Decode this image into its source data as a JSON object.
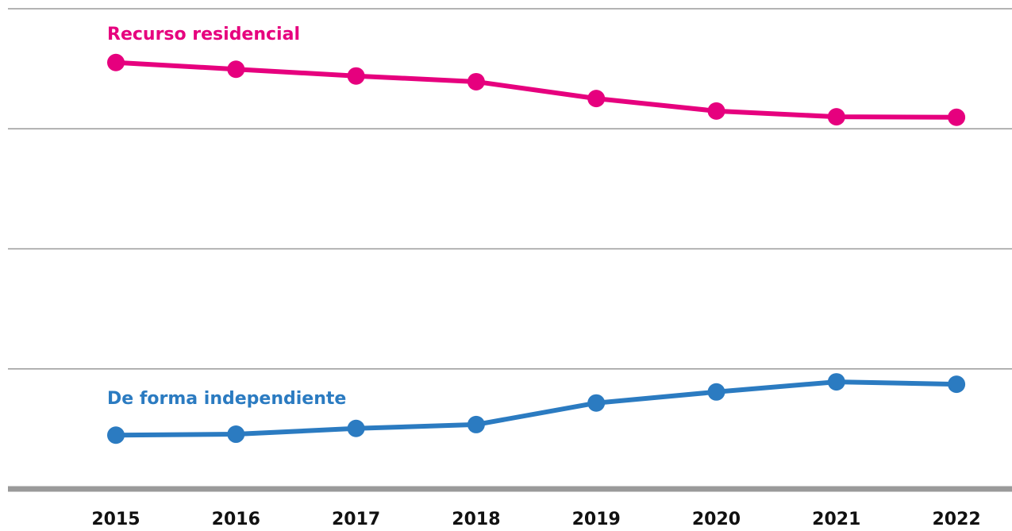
{
  "chart_data": {
    "type": "line",
    "categories": [
      "2015",
      "2016",
      "2017",
      "2018",
      "2019",
      "2020",
      "2021",
      "2022"
    ],
    "series": [
      {
        "name": "Recurso residencial",
        "color": "#e6007e",
        "values": [
          88.8,
          87.4,
          86.0,
          84.8,
          81.3,
          78.7,
          77.5,
          77.4
        ]
      },
      {
        "name": "De forma independiente",
        "color": "#2b7bc1",
        "values": [
          11.2,
          11.4,
          12.6,
          13.4,
          17.9,
          20.2,
          22.3,
          21.8
        ]
      }
    ],
    "ylim": [
      0,
      100
    ],
    "yticks": [
      0,
      25,
      50,
      75,
      100
    ],
    "grid": true
  }
}
